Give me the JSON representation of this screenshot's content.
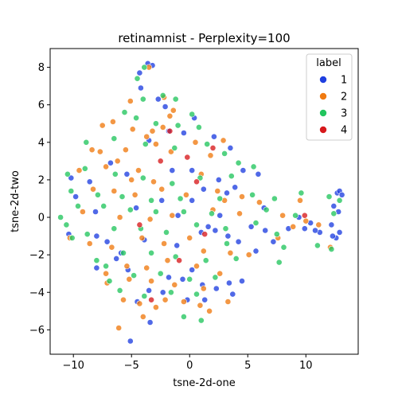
{
  "chart_data": {
    "type": "scatter",
    "title": "retinamnist - Perplexity=100",
    "xlabel": "tsne-2d-one",
    "ylabel": "tsne-2d-two",
    "xlim": [
      -12,
      14.5
    ],
    "ylim": [
      -7.3,
      9.0
    ],
    "xticks": [
      -10,
      -5,
      0,
      5,
      10
    ],
    "yticks": [
      -6,
      -4,
      -2,
      0,
      2,
      4,
      6,
      8
    ],
    "grid": false,
    "legend": {
      "title": "label",
      "placement": "top-right"
    },
    "series": [
      {
        "name": "1",
        "color": "#1f3fe0",
        "points": [
          [
            -3.6,
            8.2
          ],
          [
            -3.2,
            8.1
          ],
          [
            -4.3,
            7.7
          ],
          [
            -4.2,
            6.9
          ],
          [
            -2.7,
            6.3
          ],
          [
            -2.1,
            5.9
          ],
          [
            -1.8,
            4.6
          ],
          [
            -3.5,
            4.1
          ],
          [
            -0.5,
            4.5
          ],
          [
            0.4,
            5.3
          ],
          [
            2.1,
            4.3
          ],
          [
            3.5,
            3.7
          ],
          [
            4.6,
            2.5
          ],
          [
            5.9,
            2.3
          ],
          [
            3.9,
            1.6
          ],
          [
            2.5,
            2.0
          ],
          [
            1.2,
            1.5
          ],
          [
            0.2,
            2.5
          ],
          [
            -1.5,
            2.5
          ],
          [
            -5.4,
            2.3
          ],
          [
            -6.8,
            2.9
          ],
          [
            -8.6,
            1.9
          ],
          [
            -10.2,
            2.1
          ],
          [
            -9.8,
            1.1
          ],
          [
            -8.1,
            0.3
          ],
          [
            -10.4,
            -0.9
          ],
          [
            -8.0,
            -1.0
          ],
          [
            -7.1,
            -1.3
          ],
          [
            -4.6,
            0.5
          ],
          [
            -2.4,
            0.9
          ],
          [
            0.2,
            0.9
          ],
          [
            1.6,
            -0.5
          ],
          [
            2.2,
            -0.7
          ],
          [
            3.3,
            -1.0
          ],
          [
            4.2,
            -1.3
          ],
          [
            5.3,
            -0.5
          ],
          [
            6.5,
            -0.7
          ],
          [
            5.7,
            -1.8
          ],
          [
            7.2,
            -1.3
          ],
          [
            8.5,
            -0.6
          ],
          [
            9.4,
            0.0
          ],
          [
            9.9,
            -0.6
          ],
          [
            10.4,
            -0.3
          ],
          [
            11.2,
            -0.8
          ],
          [
            12.2,
            -0.4
          ],
          [
            12.6,
            -1.1
          ],
          [
            12.8,
            0.3
          ],
          [
            12.4,
            0.6
          ],
          [
            12.7,
            1.3
          ],
          [
            12.9,
            1.4
          ],
          [
            13.1,
            1.2
          ],
          [
            12.9,
            -0.8
          ],
          [
            12.3,
            -1.0
          ],
          [
            10.8,
            -0.7
          ],
          [
            -1.1,
            -1.5
          ],
          [
            -1.8,
            -3.2
          ],
          [
            -0.6,
            -3.3
          ],
          [
            0.2,
            -2.8
          ],
          [
            1.1,
            -3.6
          ],
          [
            2.3,
            -3.8
          ],
          [
            3.4,
            -3.5
          ],
          [
            3.7,
            -4.1
          ],
          [
            4.5,
            -3.4
          ],
          [
            -0.2,
            -4.4
          ],
          [
            -3.5,
            -3.9
          ],
          [
            -3.4,
            -5.6
          ],
          [
            -5.1,
            -6.6
          ],
          [
            -4.5,
            -4.5
          ],
          [
            -5.3,
            -2.8
          ],
          [
            -6.3,
            -2.2
          ],
          [
            -2.3,
            -4.0
          ],
          [
            1.3,
            -4.4
          ],
          [
            -8.0,
            -2.7
          ],
          [
            -5.9,
            -1.9
          ],
          [
            -3.9,
            -1.2
          ],
          [
            -1.0,
            0.1
          ],
          [
            1.0,
            -0.8
          ],
          [
            2.6,
            0.1
          ],
          [
            3.2,
            1.3
          ],
          [
            6.4,
            0.5
          ]
        ]
      },
      {
        "name": "2",
        "color": "#f07a10",
        "points": [
          [
            -3.5,
            8.0
          ],
          [
            -5.1,
            6.2
          ],
          [
            -2.2,
            6.4
          ],
          [
            -1.4,
            5.7
          ],
          [
            -6.6,
            5.1
          ],
          [
            -7.5,
            4.9
          ],
          [
            -4.9,
            4.7
          ],
          [
            -3.2,
            4.6
          ],
          [
            -2.3,
            4.8
          ],
          [
            -3.7,
            4.3
          ],
          [
            -2.9,
            3.9
          ],
          [
            -8.4,
            3.6
          ],
          [
            -7.7,
            3.5
          ],
          [
            -5.5,
            3.6
          ],
          [
            -1.6,
            3.5
          ],
          [
            1.8,
            3.3
          ],
          [
            2.9,
            4.1
          ],
          [
            -6.2,
            3.0
          ],
          [
            -7.2,
            2.7
          ],
          [
            -4.4,
            2.5
          ],
          [
            -9.5,
            2.5
          ],
          [
            -5.0,
            2.0
          ],
          [
            -3.1,
            1.9
          ],
          [
            1.0,
            2.3
          ],
          [
            2.4,
            1.4
          ],
          [
            -8.3,
            1.5
          ],
          [
            -6.5,
            1.4
          ],
          [
            -4.7,
            1.2
          ],
          [
            -2.4,
            1.5
          ],
          [
            -0.3,
            1.2
          ],
          [
            3.0,
            0.9
          ],
          [
            4.5,
            1.1
          ],
          [
            6.0,
            0.8
          ],
          [
            -9.2,
            0.3
          ],
          [
            -6.0,
            0.0
          ],
          [
            -3.4,
            -0.1
          ],
          [
            -1.5,
            0.1
          ],
          [
            2.0,
            0.4
          ],
          [
            4.3,
            0.2
          ],
          [
            8.0,
            0.1
          ],
          [
            8.9,
            -0.5
          ],
          [
            9.5,
            0.9
          ],
          [
            7.6,
            -1.1
          ],
          [
            10.0,
            -0.2
          ],
          [
            11.1,
            -0.4
          ],
          [
            12.1,
            -1.6
          ],
          [
            -10.3,
            -1.1
          ],
          [
            -8.6,
            -1.4
          ],
          [
            -6.7,
            -1.6
          ],
          [
            -4.1,
            -1.1
          ],
          [
            -2.2,
            -1.4
          ],
          [
            0.0,
            -1.1
          ],
          [
            1.2,
            -1.8
          ],
          [
            3.5,
            -1.9
          ],
          [
            5.1,
            -2.0
          ],
          [
            -7.2,
            -3.0
          ],
          [
            -5.4,
            -2.6
          ],
          [
            -3.7,
            -2.7
          ],
          [
            -1.9,
            -2.3
          ],
          [
            0.6,
            -2.6
          ],
          [
            2.6,
            -3.0
          ],
          [
            -7.1,
            -3.5
          ],
          [
            -5.2,
            -3.3
          ],
          [
            -3.3,
            -3.4
          ],
          [
            -1.3,
            -3.6
          ],
          [
            1.2,
            -3.8
          ],
          [
            -5.7,
            -4.4
          ],
          [
            -4.3,
            -4.6
          ],
          [
            -2.9,
            -4.8
          ],
          [
            -0.5,
            -4.5
          ],
          [
            1.7,
            -5.0
          ],
          [
            -6.1,
            -5.9
          ],
          [
            -4.0,
            -5.3
          ],
          [
            -2.1,
            -4.4
          ],
          [
            0.9,
            -4.7
          ],
          [
            3.3,
            -4.5
          ],
          [
            -1.7,
            5.4
          ],
          [
            0.5,
            4.0
          ]
        ]
      },
      {
        "name": "3",
        "color": "#22c55e",
        "points": [
          [
            -3.9,
            8.0
          ],
          [
            -4.5,
            7.4
          ],
          [
            -4.0,
            6.3
          ],
          [
            -2.3,
            6.5
          ],
          [
            -1.2,
            6.3
          ],
          [
            0.2,
            5.5
          ],
          [
            -5.6,
            5.6
          ],
          [
            -4.6,
            5.3
          ],
          [
            -2.9,
            5.0
          ],
          [
            -1.0,
            4.9
          ],
          [
            0.8,
            4.8
          ],
          [
            -8.9,
            4.0
          ],
          [
            -6.5,
            4.2
          ],
          [
            -3.8,
            3.9
          ],
          [
            -1.3,
            3.7
          ],
          [
            1.5,
            3.9
          ],
          [
            3.0,
            3.4
          ],
          [
            4.2,
            2.9
          ],
          [
            5.5,
            2.7
          ],
          [
            -10.5,
            2.3
          ],
          [
            -9.0,
            2.6
          ],
          [
            -6.4,
            2.3
          ],
          [
            -4.0,
            2.1
          ],
          [
            -1.5,
            1.8
          ],
          [
            0.9,
            2.1
          ],
          [
            3.6,
            2.2
          ],
          [
            -10.2,
            1.4
          ],
          [
            -7.9,
            1.2
          ],
          [
            -5.8,
            1.1
          ],
          [
            -3.3,
            0.9
          ],
          [
            -0.8,
            1.0
          ],
          [
            2.6,
            1.0
          ],
          [
            5.4,
            1.2
          ],
          [
            7.3,
            1.0
          ],
          [
            9.6,
            1.3
          ],
          [
            12.0,
            1.1
          ],
          [
            12.9,
            0.9
          ],
          [
            -9.6,
            0.6
          ],
          [
            -7.4,
            0.6
          ],
          [
            -5.1,
            0.4
          ],
          [
            -2.9,
            0.3
          ],
          [
            -0.5,
            0.3
          ],
          [
            1.9,
            0.2
          ],
          [
            6.6,
            0.4
          ],
          [
            9.1,
            0.1
          ],
          [
            12.4,
            0.2
          ],
          [
            -11.1,
            0.0
          ],
          [
            -10.6,
            -0.4
          ],
          [
            -8.8,
            -0.9
          ],
          [
            -6.5,
            -0.6
          ],
          [
            -4.2,
            -0.6
          ],
          [
            -2.0,
            -0.8
          ],
          [
            0.6,
            -0.4
          ],
          [
            3.1,
            -0.6
          ],
          [
            5.7,
            -0.3
          ],
          [
            7.5,
            -0.9
          ],
          [
            8.1,
            -1.6
          ],
          [
            11.0,
            -1.5
          ],
          [
            12.2,
            -1.7
          ],
          [
            -10.1,
            -1.1
          ],
          [
            -8.0,
            -2.3
          ],
          [
            -5.7,
            -1.9
          ],
          [
            -3.3,
            -1.9
          ],
          [
            -1.2,
            -2.1
          ],
          [
            1.4,
            -2.3
          ],
          [
            4.0,
            -2.2
          ],
          [
            7.7,
            -2.4
          ],
          [
            -7.2,
            -2.6
          ],
          [
            -4.8,
            -3.1
          ],
          [
            -2.5,
            -3.0
          ],
          [
            0.0,
            -3.3
          ],
          [
            2.2,
            -3.2
          ],
          [
            -6.0,
            -3.9
          ],
          [
            -3.9,
            -4.2
          ],
          [
            -1.6,
            -4.0
          ],
          [
            0.6,
            -4.1
          ],
          [
            -0.5,
            -5.3
          ],
          [
            1.0,
            -5.5
          ],
          [
            -6.9,
            -3.4
          ],
          [
            3.2,
            -1.4
          ]
        ]
      },
      {
        "name": "4",
        "color": "#d7191c",
        "points": [
          [
            -1.7,
            4.6
          ],
          [
            2.0,
            3.7
          ],
          [
            -0.2,
            3.2
          ],
          [
            -2.5,
            3.0
          ],
          [
            0.6,
            1.9
          ],
          [
            -4.3,
            -0.4
          ],
          [
            9.9,
            0.1
          ],
          [
            -0.9,
            -2.3
          ],
          [
            1.3,
            -0.9
          ],
          [
            -3.3,
            -4.4
          ]
        ]
      }
    ]
  }
}
